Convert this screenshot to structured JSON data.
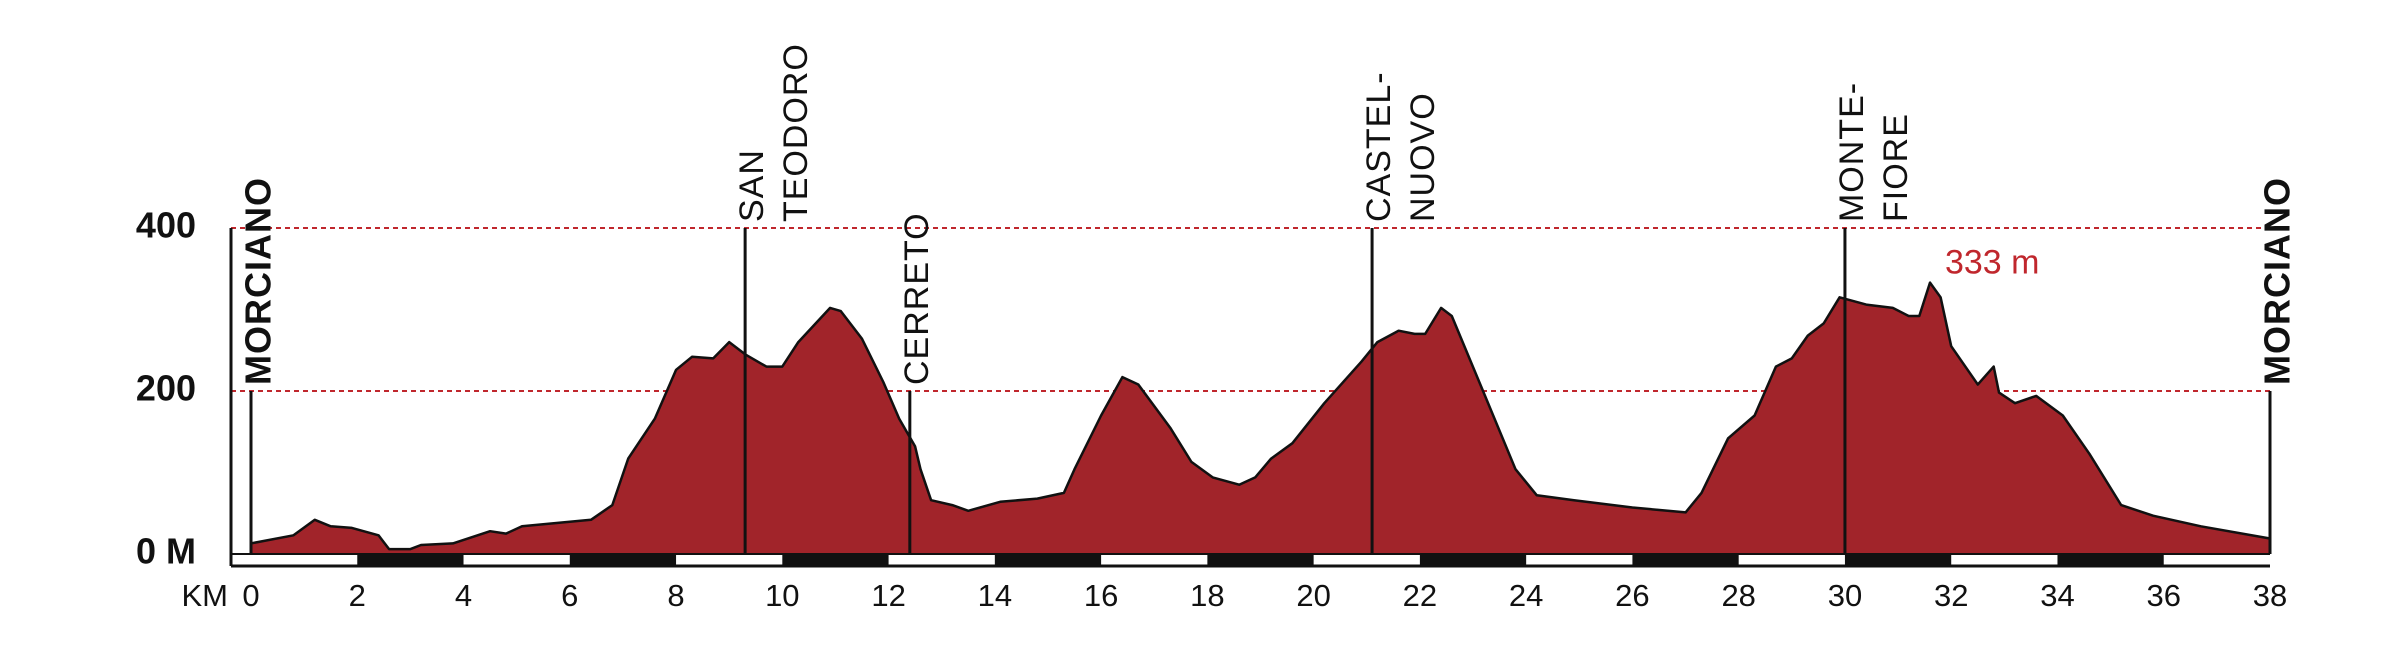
{
  "chart_data": {
    "type": "area",
    "xlabel": "KM",
    "x": [
      0,
      0.8,
      1.2,
      1.5,
      1.9,
      2.4,
      2.6,
      3.0,
      3.2,
      3.8,
      4.5,
      4.8,
      5.1,
      6.4,
      6.8,
      7.1,
      7.6,
      8.0,
      8.3,
      8.7,
      9.0,
      9.3,
      9.7,
      10.0,
      10.3,
      10.9,
      11.1,
      11.5,
      11.9,
      12.2,
      12.5,
      12.6,
      12.8,
      13.2,
      13.5,
      14.1,
      14.8,
      15.3,
      15.5,
      16.0,
      16.4,
      16.7,
      17.3,
      17.7,
      18.1,
      18.6,
      18.9,
      19.2,
      19.6,
      20.2,
      20.9,
      21.2,
      21.6,
      21.9,
      22.1,
      22.4,
      22.6,
      23.2,
      23.8,
      24.2,
      24.9,
      26.0,
      27.0,
      27.3,
      27.8,
      28.3,
      28.7,
      29.0,
      29.3,
      29.6,
      29.9,
      30.4,
      30.9,
      31.2,
      31.4,
      31.6,
      31.8,
      32.0,
      32.5,
      32.8,
      32.9,
      33.2,
      33.6,
      34.1,
      34.6,
      35.2,
      35.8,
      36.7,
      38
    ],
    "values": [
      13,
      23,
      42,
      34,
      32,
      23,
      6,
      6,
      11,
      13,
      28,
      25,
      34,
      42,
      60,
      117,
      166,
      226,
      242,
      240,
      260,
      245,
      230,
      230,
      260,
      302,
      298,
      264,
      211,
      166,
      132,
      104,
      66,
      60,
      53,
      64,
      68,
      75,
      104,
      170,
      217,
      208,
      155,
      113,
      94,
      85,
      94,
      117,
      136,
      185,
      236,
      260,
      274,
      270,
      270,
      302,
      292,
      198,
      104,
      72,
      66,
      57,
      51,
      75,
      142,
      170,
      230,
      240,
      268,
      283,
      315,
      306,
      302,
      292,
      292,
      333,
      315,
      255,
      208,
      230,
      198,
      185,
      194,
      170,
      123,
      60,
      47,
      34,
      19
    ],
    "color": "#a1242a",
    "xlim": [
      0,
      38
    ],
    "ylim": [
      0,
      400
    ],
    "xticks": [
      0,
      2,
      4,
      6,
      8,
      10,
      12,
      14,
      16,
      18,
      20,
      22,
      24,
      26,
      28,
      30,
      32,
      34,
      36,
      38
    ],
    "yticks": [
      {
        "value": 0,
        "label": "0 M"
      },
      200,
      400
    ],
    "grid": true,
    "grid_color": "#c0272d",
    "annotation": "333 m",
    "places": [
      {
        "lines": [
          "MORCIANO"
        ],
        "km": 0,
        "bold": true
      },
      {
        "lines": [
          "SAN",
          "TEODORO"
        ],
        "km": 9.3,
        "bold": false
      },
      {
        "lines": [
          "CERRETO"
        ],
        "km": 12.4,
        "bold": false
      },
      {
        "lines": [
          "CASTEL-",
          "NUOVO"
        ],
        "km": 21.1,
        "bold": false
      },
      {
        "lines": [
          "MONTE-",
          "FIORE"
        ],
        "km": 30.0,
        "bold": false
      },
      {
        "lines": [
          "MORCIANO"
        ],
        "km": 38,
        "bold": true
      }
    ]
  }
}
